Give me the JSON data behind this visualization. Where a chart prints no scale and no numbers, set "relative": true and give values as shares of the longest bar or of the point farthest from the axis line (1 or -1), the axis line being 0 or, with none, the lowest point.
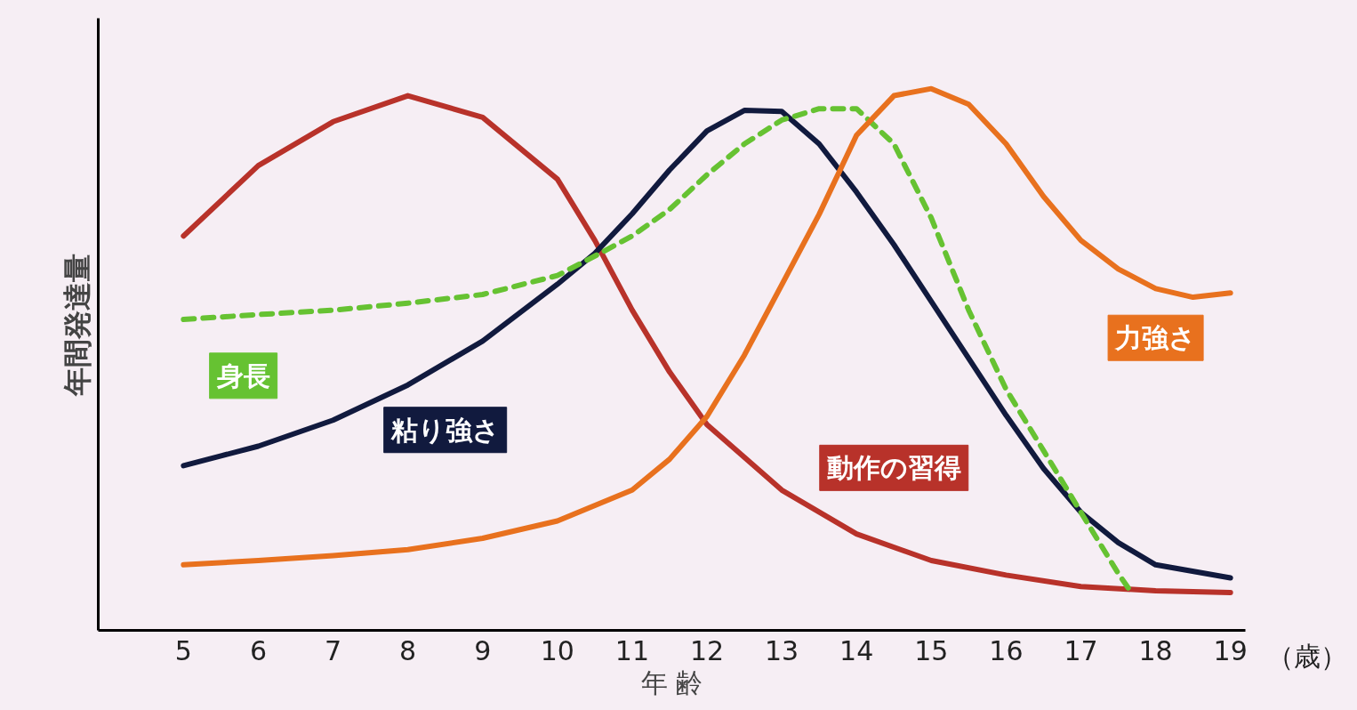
{
  "chart_data": {
    "type": "line",
    "relative": true,
    "xlabel": "年 齢",
    "ylabel": "年間発達量",
    "annotations": [
      "（歳）"
    ],
    "xlim": [
      3.86,
      19.2
    ],
    "xticks": [
      5,
      6,
      7,
      8,
      9,
      10,
      11,
      12,
      13,
      14,
      15,
      16,
      17,
      18,
      19
    ],
    "grid": false,
    "marker": "none",
    "series": [
      {
        "name": "動作の習得",
        "color": "#b8322a",
        "line_style": "solid",
        "x": [
          5,
          6,
          7,
          8,
          9,
          10,
          10.5,
          11,
          11.5,
          12,
          13,
          14,
          15,
          16,
          17,
          18,
          19
        ],
        "values": [
          0.728,
          0.858,
          0.939,
          0.987,
          0.947,
          0.833,
          0.72,
          0.591,
          0.477,
          0.38,
          0.259,
          0.178,
          0.129,
          0.102,
          0.081,
          0.073,
          0.07
        ]
      },
      {
        "name": "粘り強さ",
        "color": "#111a3e",
        "line_style": "solid",
        "x": [
          5,
          6,
          7,
          8,
          9,
          10,
          10.5,
          11,
          11.5,
          12,
          12.5,
          13,
          13.5,
          14,
          14.5,
          15,
          15.5,
          16,
          16.5,
          17,
          17.5,
          18,
          19
        ],
        "values": [
          0.304,
          0.34,
          0.388,
          0.453,
          0.534,
          0.639,
          0.696,
          0.769,
          0.85,
          0.922,
          0.96,
          0.958,
          0.898,
          0.809,
          0.712,
          0.607,
          0.502,
          0.397,
          0.299,
          0.218,
          0.162,
          0.121,
          0.097
        ]
      },
      {
        "name": "身長",
        "color": "#66c232",
        "line_style": "dashed",
        "x": [
          5,
          6,
          7,
          8,
          9,
          10,
          10.5,
          11,
          11.5,
          12,
          12.5,
          13,
          13.5,
          14,
          14.5,
          15,
          15.5,
          16,
          16.5,
          17,
          17.5,
          17.7
        ],
        "values": [
          0.574,
          0.583,
          0.591,
          0.604,
          0.62,
          0.655,
          0.691,
          0.728,
          0.777,
          0.841,
          0.898,
          0.942,
          0.963,
          0.963,
          0.898,
          0.761,
          0.591,
          0.445,
          0.332,
          0.218,
          0.105,
          0.065
        ]
      },
      {
        "name": "力強さ",
        "color": "#e8711e",
        "line_style": "solid",
        "x": [
          5,
          6,
          7,
          8,
          9,
          10,
          11,
          11.5,
          12,
          12.5,
          13,
          13.5,
          14,
          14.5,
          15,
          15.5,
          16,
          16.5,
          17,
          17.5,
          18,
          18.5,
          19
        ],
        "values": [
          0.121,
          0.129,
          0.138,
          0.149,
          0.17,
          0.202,
          0.259,
          0.316,
          0.395,
          0.508,
          0.638,
          0.768,
          0.914,
          0.987,
          1.0,
          0.971,
          0.898,
          0.801,
          0.72,
          0.667,
          0.631,
          0.615,
          0.623
        ]
      }
    ]
  }
}
